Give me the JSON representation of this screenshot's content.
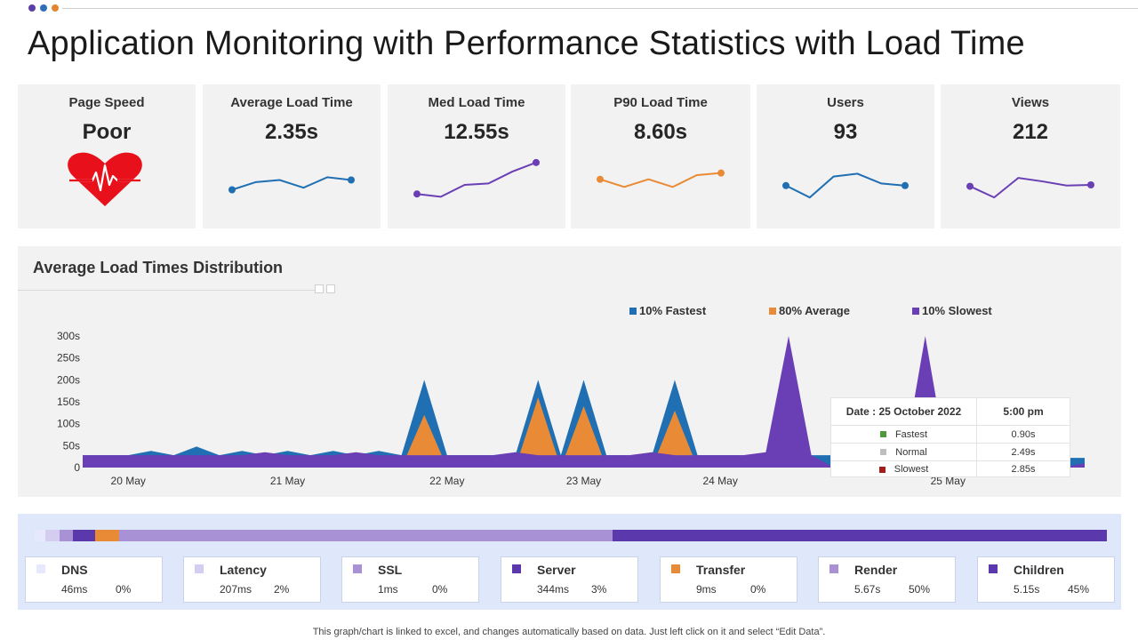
{
  "page": {
    "title": "Application Monitoring with Performance Statistics with Load Time",
    "footnote": "This graph/chart is linked to excel, and changes automatically based on data. Just left click on it and select “Edit Data”.",
    "accent_dots": [
      "#5b3ea6",
      "#2f6fb7",
      "#e3862f"
    ]
  },
  "kpis": [
    {
      "label": "Page Speed",
      "value": "Poor",
      "icon": "heart-pulse-icon",
      "icon_color": "#e8111b"
    },
    {
      "label": "Average Load Time",
      "value": "2.35s",
      "color": "#1f6fb2",
      "trend": [
        2.1,
        3.2,
        3.5,
        2.4,
        3.9,
        3.5
      ]
    },
    {
      "label": "Med Load Time",
      "value": "12.55s",
      "color": "#6a3fb5",
      "trend": [
        1.5,
        1.1,
        2.8,
        3.0,
        4.7,
        6.0
      ]
    },
    {
      "label": "P90 Load Time",
      "value": "8.60s",
      "color": "#e98a36",
      "trend": [
        3.6,
        2.5,
        3.6,
        2.5,
        4.2,
        4.5
      ]
    },
    {
      "label": "Users",
      "value": "93",
      "color": "#1f6fb2",
      "trend": [
        2.7,
        1.0,
        4.0,
        4.4,
        3.0,
        2.7
      ]
    },
    {
      "label": "Views",
      "value": "212",
      "color": "#6a3fb5",
      "trend": [
        2.6,
        1.0,
        3.8,
        3.3,
        2.7,
        2.8
      ]
    }
  ],
  "distribution": {
    "title": "Average Load Times Distribution",
    "legend": [
      {
        "label": "10% Fastest",
        "color": "#1f6fb2"
      },
      {
        "label": "80% Average",
        "color": "#e98a36"
      },
      {
        "label": "10% Slowest",
        "color": "#6a3fb5"
      }
    ],
    "tooltip": {
      "date_label": "Date : 25 October 2022",
      "time_label": "5:00 pm",
      "rows": [
        {
          "label": "Fastest",
          "value": "0.90s",
          "color": "#4e9a3a"
        },
        {
          "label": "Normal",
          "value": "2.49s",
          "color": "#bfbfbf"
        },
        {
          "label": "Slowest",
          "value": "2.85s",
          "color": "#a61b1b"
        }
      ]
    }
  },
  "chart_data": {
    "type": "area",
    "title": "Average Load Times Distribution",
    "xlabel": "",
    "ylabel": "",
    "ylim": [
      0,
      300
    ],
    "y_ticks": [
      "0",
      "50s",
      "100s",
      "150s",
      "200s",
      "250s",
      "300s"
    ],
    "x_ticks": [
      {
        "label": "20 May",
        "x": 2
      },
      {
        "label": "21 May",
        "x": 9
      },
      {
        "label": "22 May",
        "x": 16
      },
      {
        "label": "23 May",
        "x": 22
      },
      {
        "label": "24 May",
        "x": 28
      },
      {
        "label": "25 May",
        "x": 38
      }
    ],
    "x": [
      0,
      1,
      2,
      3,
      4,
      5,
      6,
      7,
      8,
      9,
      10,
      11,
      12,
      13,
      14,
      15,
      16,
      17,
      18,
      19,
      20,
      21,
      22,
      23,
      24,
      25,
      26,
      27,
      28,
      29,
      30,
      31,
      32,
      33,
      34,
      35,
      36,
      37,
      38,
      39,
      40,
      41,
      42,
      43,
      44
    ],
    "legend_position": "top",
    "grid": false,
    "series": [
      {
        "name": "10% Fastest",
        "color": "#1f6fb2",
        "values": [
          28,
          28,
          28,
          38,
          28,
          48,
          28,
          38,
          28,
          38,
          28,
          38,
          28,
          38,
          28,
          200,
          28,
          28,
          28,
          28,
          200,
          28,
          200,
          28,
          28,
          28,
          200,
          28,
          28,
          28,
          28,
          28,
          28,
          28,
          22,
          22,
          22,
          22,
          22,
          22,
          22,
          22,
          22,
          22,
          22
        ]
      },
      {
        "name": "80% Average",
        "color": "#e98a36",
        "values": [
          0,
          0,
          0,
          0,
          0,
          0,
          0,
          0,
          0,
          0,
          0,
          0,
          0,
          0,
          0,
          120,
          0,
          0,
          0,
          0,
          160,
          0,
          140,
          0,
          0,
          0,
          130,
          0,
          0,
          0,
          0,
          0,
          0,
          0,
          0,
          0,
          0,
          0,
          0,
          0,
          0,
          0,
          0,
          0,
          0
        ]
      },
      {
        "name": "10% Slowest",
        "color": "#6a3fb5",
        "values": [
          28,
          28,
          28,
          28,
          28,
          28,
          28,
          28,
          35,
          28,
          28,
          28,
          35,
          28,
          28,
          28,
          28,
          28,
          28,
          35,
          28,
          28,
          28,
          28,
          28,
          35,
          28,
          28,
          28,
          28,
          35,
          300,
          28,
          0,
          0,
          0,
          0,
          300,
          0,
          0,
          0,
          0,
          0,
          0,
          10
        ]
      }
    ]
  },
  "timings": {
    "bar": [
      {
        "name": "DNS",
        "color": "#e6e9fb",
        "share": 1.0
      },
      {
        "name": "Latency",
        "color": "#d4cdef",
        "share": 1.3
      },
      {
        "name": "SSL",
        "color": "#a891d4",
        "share": 1.3
      },
      {
        "name": "Server",
        "color": "#5c38ad",
        "share": 2.0
      },
      {
        "name": "Transfer",
        "color": "#e98a36",
        "share": 2.3
      },
      {
        "name": "Render",
        "color": "#a891d4",
        "share": 46.0
      },
      {
        "name": "Children",
        "color": "#5c38ad",
        "share": 46.1
      }
    ],
    "items": [
      {
        "name": "DNS",
        "value": "46ms",
        "pct": "0%",
        "color": "#e6e9fb"
      },
      {
        "name": "Latency",
        "value": "207ms",
        "pct": "2%",
        "color": "#d4cdef"
      },
      {
        "name": "SSL",
        "value": "1ms",
        "pct": "0%",
        "color": "#a891d4"
      },
      {
        "name": "Server",
        "value": "344ms",
        "pct": "3%",
        "color": "#5c38ad"
      },
      {
        "name": "Transfer",
        "value": "9ms",
        "pct": "0%",
        "color": "#e98a36"
      },
      {
        "name": "Render",
        "value": "5.67s",
        "pct": "50%",
        "color": "#a891d4"
      },
      {
        "name": "Children",
        "value": "5.15s",
        "pct": "45%",
        "color": "#5c38ad"
      }
    ]
  }
}
